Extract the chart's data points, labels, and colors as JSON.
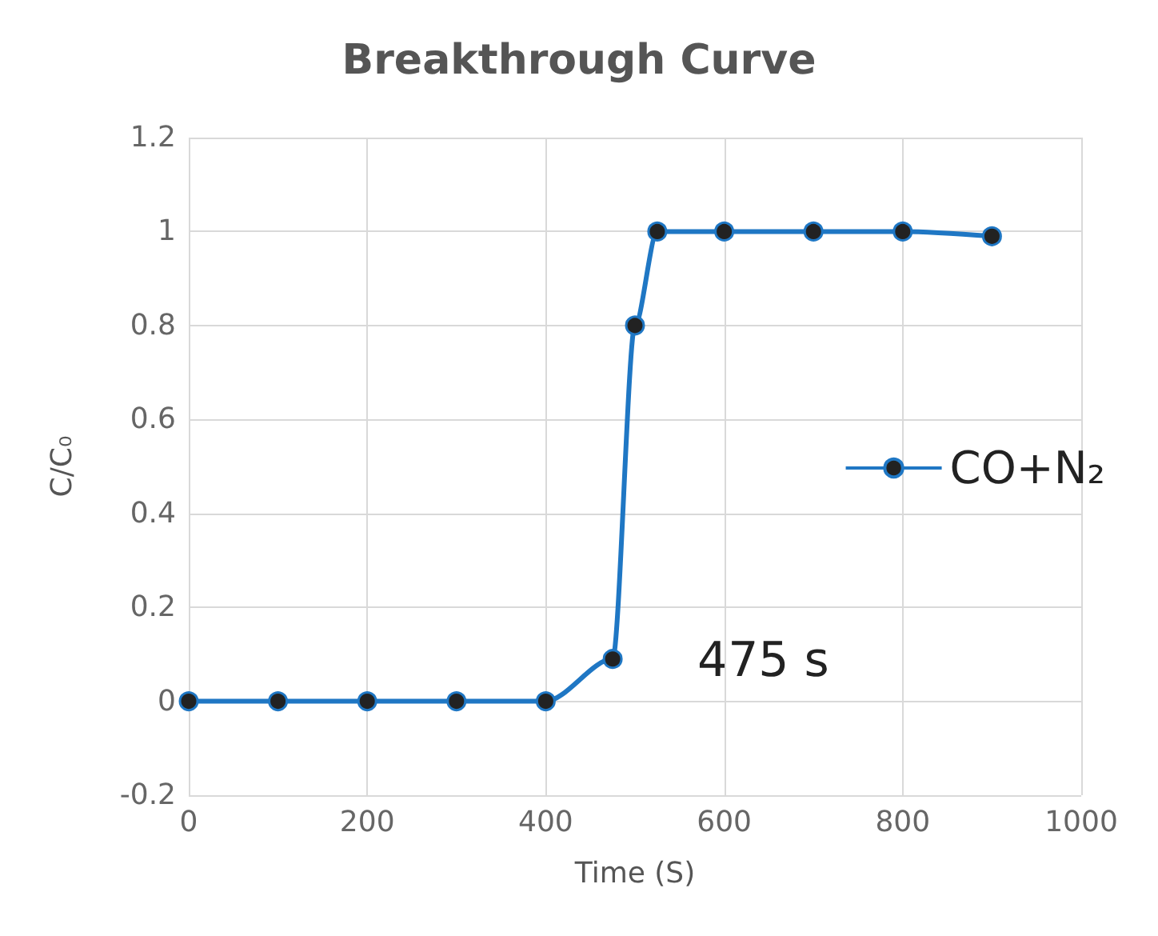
{
  "chart_data": {
    "type": "line",
    "title": "Breakthrough Curve",
    "xlabel": "Time (S)",
    "ylabel": "C/C₀",
    "x": [
      0,
      100,
      200,
      300,
      400,
      475,
      500,
      525,
      600,
      700,
      800,
      900
    ],
    "series": [
      {
        "name": "CO+N₂",
        "color": "#1f77c4",
        "values": [
          0,
          0,
          0,
          0,
          0,
          0.09,
          0.8,
          1,
          1,
          1,
          1,
          0.99
        ]
      }
    ],
    "xlim": [
      0,
      1000
    ],
    "xticks": [
      0,
      200,
      400,
      600,
      800,
      1000
    ],
    "ylim": [
      -0.2,
      1.2
    ],
    "yticks": [
      -0.2,
      0,
      0.2,
      0.4,
      0.6,
      0.8,
      1,
      1.2
    ],
    "grid": true,
    "legend": "right",
    "marker": "circle",
    "line_style": "solid",
    "annotations": [
      "475 s"
    ]
  }
}
